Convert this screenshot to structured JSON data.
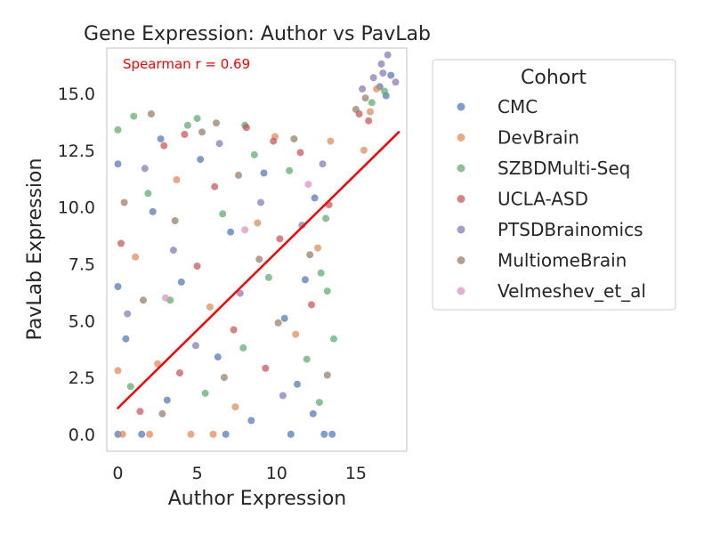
{
  "chart_data": {
    "type": "scatter",
    "title": "Gene Expression: Author vs PavLab",
    "xlabel": "Author Expression",
    "ylabel": "PavLab Expression",
    "xlim": [
      -0.7,
      18.2
    ],
    "ylim": [
      -0.75,
      17.0
    ],
    "xticks": [
      0,
      5,
      10,
      15
    ],
    "yticks": [
      0.0,
      2.5,
      5.0,
      7.5,
      10.0,
      12.5,
      15.0
    ],
    "xtick_labels": [
      "0",
      "5",
      "10",
      "15"
    ],
    "ytick_labels": [
      "0.0",
      "2.5",
      "5.0",
      "7.5",
      "10.0",
      "12.5",
      "15.0"
    ],
    "grid": false,
    "annotation": {
      "text": "Spearman r = 0.69",
      "color": "#ff0000"
    },
    "trend_line": {
      "from": [
        0,
        1.15
      ],
      "to": [
        17.7,
        13.3
      ],
      "color": "#ff0000"
    },
    "legend": {
      "title": "Cohort",
      "placement": "outside-right",
      "entries": [
        {
          "name": "CMC",
          "color": "#4c72b0"
        },
        {
          "name": "DevBrain",
          "color": "#dd8452"
        },
        {
          "name": "SZBDMulti-Seq",
          "color": "#55a868"
        },
        {
          "name": "UCLA-ASD",
          "color": "#c44e52"
        },
        {
          "name": "PTSDBrainomics",
          "color": "#8172b3"
        },
        {
          "name": "MultiomeBrain",
          "color": "#937860"
        },
        {
          "name": "Velmeshev_et_al",
          "color": "#da8bc3"
        }
      ]
    },
    "series": [
      {
        "name": "CMC",
        "color": "#4c72b0",
        "points": [
          [
            0,
            0
          ],
          [
            0.5,
            4.2
          ],
          [
            1.5,
            0
          ],
          [
            2.2,
            9.8
          ],
          [
            3.1,
            1.5
          ],
          [
            4.0,
            6.7
          ],
          [
            5.2,
            12.1
          ],
          [
            6.3,
            3.4
          ],
          [
            7.1,
            8.9
          ],
          [
            8.4,
            0.6
          ],
          [
            9.2,
            11.5
          ],
          [
            10.5,
            5.1
          ],
          [
            11.3,
            2.2
          ],
          [
            12.4,
            10.4
          ],
          [
            13.0,
            0
          ],
          [
            13.5,
            0
          ],
          [
            0,
            6.5
          ],
          [
            0,
            11.9
          ],
          [
            2.7,
            13.0
          ],
          [
            6.8,
            0
          ],
          [
            10.9,
            0
          ],
          [
            12.3,
            0.9
          ],
          [
            11.8,
            6.8
          ],
          [
            16.5,
            15.3
          ],
          [
            17.2,
            15.8
          ],
          [
            16.9,
            14.9
          ]
        ]
      },
      {
        "name": "DevBrain",
        "color": "#dd8452",
        "points": [
          [
            0.3,
            0
          ],
          [
            1.1,
            7.8
          ],
          [
            2.5,
            3.1
          ],
          [
            3.7,
            11.2
          ],
          [
            4.6,
            0
          ],
          [
            5.8,
            5.6
          ],
          [
            7.4,
            1.2
          ],
          [
            8.8,
            9.3
          ],
          [
            9.9,
            13.1
          ],
          [
            11.2,
            4.4
          ],
          [
            12.6,
            8.2
          ],
          [
            13.4,
            12.9
          ],
          [
            15.5,
            12.5
          ],
          [
            15.9,
            14.2
          ],
          [
            16.3,
            15.2
          ],
          [
            2.0,
            0
          ],
          [
            6.0,
            0
          ],
          [
            0,
            2.8
          ]
        ]
      },
      {
        "name": "SZBDMulti-Seq",
        "color": "#55a868",
        "points": [
          [
            0,
            13.4
          ],
          [
            0.8,
            2.1
          ],
          [
            1.9,
            10.6
          ],
          [
            3.3,
            5.9
          ],
          [
            4.4,
            13.6
          ],
          [
            5.5,
            1.8
          ],
          [
            6.6,
            9.7
          ],
          [
            7.9,
            3.8
          ],
          [
            8.6,
            12.3
          ],
          [
            9.5,
            6.9
          ],
          [
            10.8,
            11.6
          ],
          [
            11.9,
            3.3
          ],
          [
            12.8,
            7.1
          ],
          [
            13.6,
            4.2
          ],
          [
            12.7,
            1.4
          ],
          [
            13.1,
            9.5
          ],
          [
            16.0,
            14.6
          ],
          [
            16.8,
            15.1
          ],
          [
            1.0,
            14.0
          ],
          [
            5.0,
            13.9
          ],
          [
            8.0,
            13.6
          ],
          [
            13.2,
            6.3
          ]
        ]
      },
      {
        "name": "UCLA-ASD",
        "color": "#c44e52",
        "points": [
          [
            0.2,
            8.4
          ],
          [
            1.4,
            1.0
          ],
          [
            2.9,
            12.7
          ],
          [
            3.9,
            2.7
          ],
          [
            5.0,
            7.4
          ],
          [
            6.1,
            10.9
          ],
          [
            7.3,
            4.6
          ],
          [
            8.1,
            13.5
          ],
          [
            9.3,
            2.9
          ],
          [
            10.2,
            8.6
          ],
          [
            11.5,
            12.4
          ],
          [
            12.2,
            5.7
          ],
          [
            13.3,
            10.1
          ],
          [
            15.2,
            14.1
          ],
          [
            15.8,
            13.8
          ],
          [
            4.2,
            13.2
          ],
          [
            9.8,
            12.9
          ]
        ]
      },
      {
        "name": "PTSDBrainomics",
        "color": "#8172b3",
        "points": [
          [
            0.6,
            5.3
          ],
          [
            1.7,
            11.7
          ],
          [
            3.5,
            8.1
          ],
          [
            4.9,
            3.9
          ],
          [
            6.4,
            12.8
          ],
          [
            7.7,
            6.2
          ],
          [
            9.0,
            10.2
          ],
          [
            10.4,
            1.7
          ],
          [
            11.6,
            9.2
          ],
          [
            12.9,
            11.9
          ],
          [
            15.4,
            15.2
          ],
          [
            16.1,
            15.7
          ],
          [
            16.6,
            16.3
          ],
          [
            17.0,
            16.7
          ],
          [
            16.7,
            15.9
          ],
          [
            17.5,
            15.5
          ]
        ]
      },
      {
        "name": "MultiomeBrain",
        "color": "#937860",
        "points": [
          [
            0.4,
            10.2
          ],
          [
            1.6,
            5.9
          ],
          [
            2.8,
            0.9
          ],
          [
            3.6,
            9.4
          ],
          [
            5.3,
            13.3
          ],
          [
            6.7,
            2.5
          ],
          [
            7.6,
            11.4
          ],
          [
            8.9,
            7.7
          ],
          [
            10.1,
            4.9
          ],
          [
            11.1,
            13.0
          ],
          [
            12.1,
            7.9
          ],
          [
            13.2,
            2.6
          ],
          [
            15.0,
            14.3
          ],
          [
            15.6,
            14.8
          ],
          [
            2.1,
            14.1
          ],
          [
            6.2,
            13.7
          ]
        ]
      },
      {
        "name": "Velmeshev_et_al",
        "color": "#da8bc3",
        "points": [
          [
            3.0,
            6.0
          ],
          [
            8.0,
            9.0
          ],
          [
            12.0,
            11.0
          ]
        ]
      }
    ]
  }
}
